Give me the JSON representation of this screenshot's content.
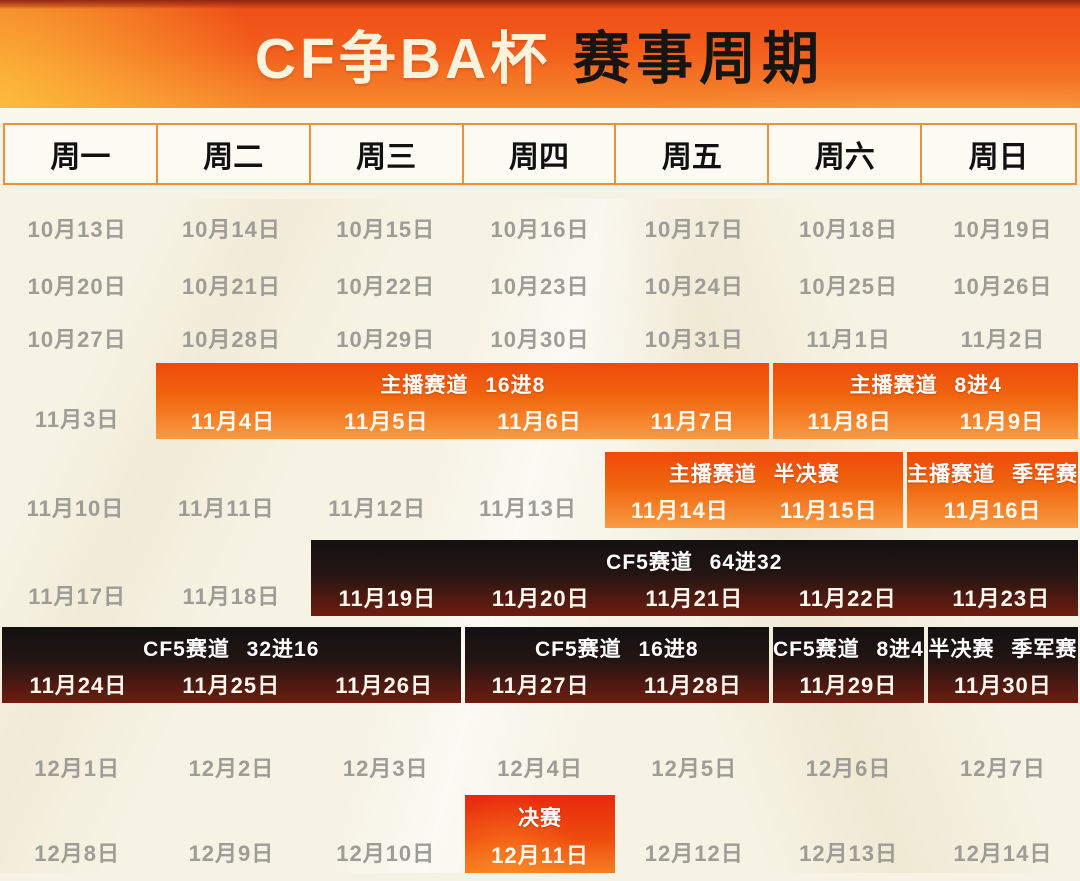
{
  "header": {
    "title_main": "CF争BA杯",
    "title_sub": "赛事周期"
  },
  "colors": {
    "banner_orange_top": "#ee4c16",
    "banner_orange_bottom": "#f68a2e",
    "background_cream": "#f6f3e4",
    "table_border_orange": "#e9913f",
    "date_gray": "#9d9c96",
    "band_orange_top": "#ee4a0b",
    "band_orange_bottom": "#f99b43",
    "band_dark_top": "#131111",
    "band_dark_bottom": "#6f1d10",
    "final_red_top": "#e7290e",
    "final_red_bottom": "#f57d22",
    "band_text": "#ffffff"
  },
  "calendar": {
    "weekdays": [
      "周一",
      "周二",
      "周三",
      "周四",
      "周五",
      "周六",
      "周日"
    ],
    "weeks": [
      {
        "type": "plain",
        "days": [
          "10月13日",
          "10月14日",
          "10月15日",
          "10月16日",
          "10月17日",
          "10月18日",
          "10月19日"
        ]
      },
      {
        "type": "plain",
        "days": [
          "10月20日",
          "10月21日",
          "10月22日",
          "10月23日",
          "10月24日",
          "10月25日",
          "10月26日"
        ]
      },
      {
        "type": "plain",
        "days": [
          "10月27日",
          "10月28日",
          "10月29日",
          "10月30日",
          "10月31日",
          "11月1日",
          "11月2日"
        ]
      },
      {
        "type": "banded",
        "days": [
          "11月3日",
          "11月4日",
          "11月5日",
          "11月6日",
          "11月7日",
          "11月8日",
          "11月9日"
        ],
        "bands": [
          {
            "start": 2,
            "span": 4,
            "label": "主播赛道 16进8",
            "style": "orange"
          },
          {
            "start": 6,
            "span": 2,
            "label": "主播赛道 8进4",
            "style": "orange"
          }
        ]
      },
      {
        "type": "banded",
        "days": [
          "11月10日",
          "11月11日",
          "11月12日",
          "11月13日",
          "11月14日",
          "11月15日",
          "11月16日"
        ],
        "bands": [
          {
            "start": 5,
            "span": 2,
            "label": "主播赛道 半决赛",
            "style": "orange"
          },
          {
            "start": 7,
            "span": 1,
            "label": "主播赛道 季军赛",
            "style": "orange"
          }
        ]
      },
      {
        "type": "banded",
        "days": [
          "11月17日",
          "11月18日",
          "11月19日",
          "11月20日",
          "11月21日",
          "11月22日",
          "11月23日"
        ],
        "bands": [
          {
            "start": 3,
            "span": 5,
            "label": "CF5赛道 64进32",
            "style": "dark"
          }
        ]
      },
      {
        "type": "banded",
        "days": [
          "11月24日",
          "11月25日",
          "11月26日",
          "11月27日",
          "11月28日",
          "11月29日",
          "11月30日"
        ],
        "bands": [
          {
            "start": 1,
            "span": 3,
            "label": "CF5赛道 32进16",
            "style": "dark"
          },
          {
            "start": 4,
            "span": 2,
            "label": "CF5赛道 16进8",
            "style": "dark"
          },
          {
            "start": 6,
            "span": 1,
            "label": "CF5赛道 8进4",
            "style": "dark"
          },
          {
            "start": 7,
            "span": 1,
            "label": "半决赛 季军赛",
            "style": "dark"
          }
        ]
      },
      {
        "type": "plain",
        "days": [
          "12月1日",
          "12月2日",
          "12月3日",
          "12月4日",
          "12月5日",
          "12月6日",
          "12月7日"
        ]
      },
      {
        "type": "banded",
        "days": [
          "12月8日",
          "12月9日",
          "12月10日",
          "12月11日",
          "12月12日",
          "12月13日",
          "12月14日"
        ],
        "bands": [
          {
            "start": 4,
            "span": 1,
            "label": "决赛",
            "style": "red"
          }
        ]
      }
    ]
  }
}
